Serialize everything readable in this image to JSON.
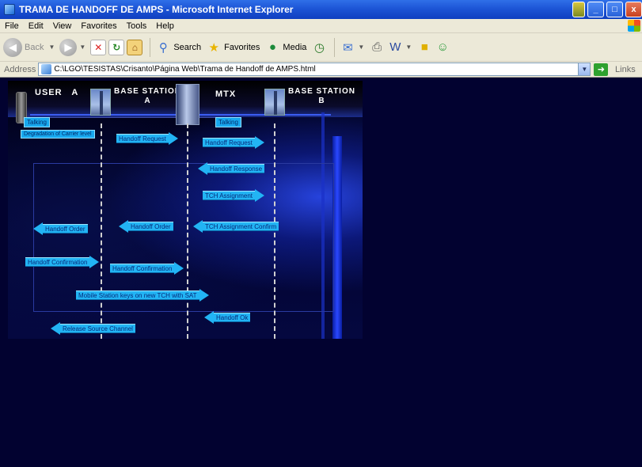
{
  "window": {
    "title": "TRAMA DE HANDOFF DE AMPS - Microsoft Internet Explorer",
    "buttons": [
      "_",
      "□",
      "x"
    ]
  },
  "menu": [
    "File",
    "Edit",
    "View",
    "Favorites",
    "Tools",
    "Help"
  ],
  "toolbar": {
    "back": "Back",
    "search": "Search",
    "favorites": "Favorites",
    "media": "Media"
  },
  "address": {
    "label": "Address",
    "value": "C:\\LGO\\TESISTAS\\Crisanto\\Página Web\\Trama de Handoff de AMPS.html",
    "go": "Go",
    "links": "Links"
  },
  "diagram": {
    "headers": {
      "user_a": "USER   A",
      "base_a": "BASE STATION\nA",
      "mtx": "MTX",
      "base_b": "BASE STATION\nB"
    },
    "tags": {
      "talking_left": "Talking",
      "talking_right": "Talking",
      "degradation": "Degradation of Carrier level"
    },
    "messages": {
      "handoff_request_1": "Handoff Request",
      "handoff_request_2": "Handoff Request",
      "handoff_response": "Handoff Response",
      "tch_assignment": "TCH Assignment",
      "handoff_order_1": "Handoff Order",
      "handoff_order_2": "Handoff Order",
      "tch_assignment_confirm": "TCH Assignment Confirm",
      "handoff_confirmation_1": "Handoff Confirmation",
      "handoff_confirmation_2": "Handoff Confirmation",
      "mobile_keys": "Mobile Station keys on new TCH with SAT",
      "handoff_ok": "Handoff Ok",
      "release_source": "Release Source Channel"
    }
  }
}
